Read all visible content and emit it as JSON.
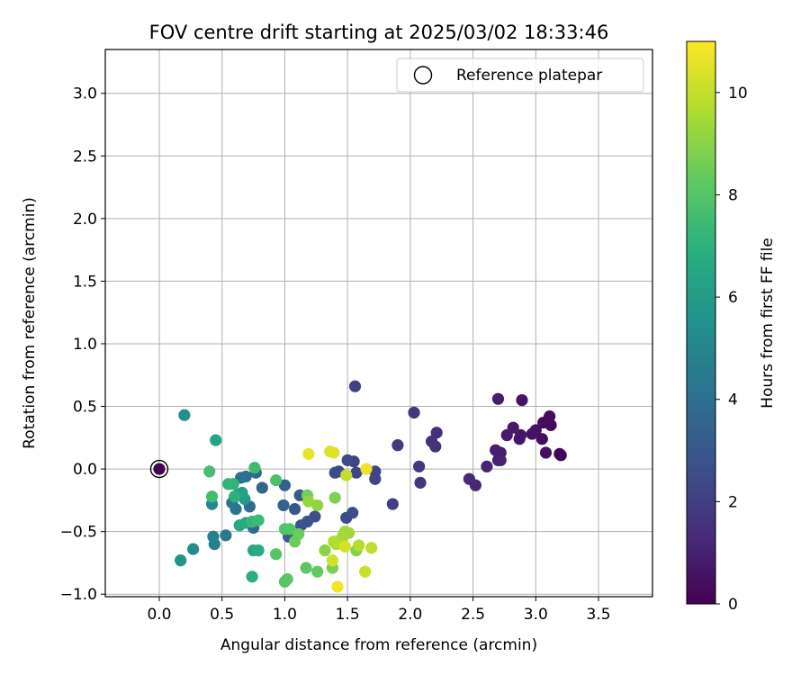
{
  "chart_data": {
    "type": "scatter",
    "title": "FOV centre drift starting at 2025/03/02 18:33:46",
    "xlabel": "Angular distance from reference (arcmin)",
    "ylabel": "Rotation from reference (arcmin)",
    "xlim": [
      -0.43,
      3.93
    ],
    "ylim": [
      -1.02,
      3.35
    ],
    "xticks": [
      "0.0",
      "0.5",
      "1.0",
      "1.5",
      "2.0",
      "2.5",
      "3.0",
      "3.5"
    ],
    "yticks": [
      "−1.0",
      "−0.5",
      "0.0",
      "0.5",
      "1.0",
      "1.5",
      "2.0",
      "2.5",
      "3.0"
    ],
    "grid": true,
    "legend": {
      "position": "top-right",
      "label": "Reference platepar"
    },
    "colorbar": {
      "label": "Hours from first FF file",
      "colormap": "viridis",
      "range": [
        0,
        11
      ],
      "ticks": [
        "0",
        "2",
        "4",
        "6",
        "8",
        "10"
      ]
    },
    "reference_point": {
      "x": 0.0,
      "y": 0.0,
      "hours": 0.0
    },
    "points": [
      {
        "x": 3.2,
        "y": 0.11,
        "h": 0.05
      },
      {
        "x": 3.19,
        "y": 0.12,
        "h": 0.1
      },
      {
        "x": 3.12,
        "y": 0.35,
        "h": 0.2
      },
      {
        "x": 3.11,
        "y": 0.42,
        "h": 0.3
      },
      {
        "x": 3.06,
        "y": 0.37,
        "h": 0.35
      },
      {
        "x": 3.08,
        "y": 0.13,
        "h": 0.4
      },
      {
        "x": 3.05,
        "y": 0.24,
        "h": 0.45
      },
      {
        "x": 3.0,
        "y": 0.31,
        "h": 0.5
      },
      {
        "x": 2.97,
        "y": 0.28,
        "h": 0.55
      },
      {
        "x": 2.89,
        "y": 0.55,
        "h": 0.6
      },
      {
        "x": 2.88,
        "y": 0.27,
        "h": 0.65
      },
      {
        "x": 2.87,
        "y": 0.24,
        "h": 0.7
      },
      {
        "x": 2.82,
        "y": 0.33,
        "h": 0.75
      },
      {
        "x": 2.77,
        "y": 0.27,
        "h": 0.8
      },
      {
        "x": 2.72,
        "y": 0.13,
        "h": 0.85
      },
      {
        "x": 2.7,
        "y": 0.56,
        "h": 0.9
      },
      {
        "x": 2.68,
        "y": 0.15,
        "h": 0.95
      },
      {
        "x": 2.7,
        "y": 0.07,
        "h": 1.0
      },
      {
        "x": 2.72,
        "y": 0.07,
        "h": 1.05
      },
      {
        "x": 2.61,
        "y": 0.02,
        "h": 1.1
      },
      {
        "x": 2.52,
        "y": -0.13,
        "h": 1.2
      },
      {
        "x": 2.47,
        "y": -0.08,
        "h": 1.3
      },
      {
        "x": 2.21,
        "y": 0.29,
        "h": 1.5
      },
      {
        "x": 2.2,
        "y": 0.18,
        "h": 1.55
      },
      {
        "x": 2.17,
        "y": 0.22,
        "h": 1.6
      },
      {
        "x": 2.07,
        "y": 0.02,
        "h": 1.7
      },
      {
        "x": 2.08,
        "y": -0.11,
        "h": 1.75
      },
      {
        "x": 2.03,
        "y": 0.45,
        "h": 1.8
      },
      {
        "x": 1.9,
        "y": 0.19,
        "h": 1.9
      },
      {
        "x": 1.86,
        "y": -0.28,
        "h": 2.0
      },
      {
        "x": 1.56,
        "y": 0.66,
        "h": 2.1
      },
      {
        "x": 1.72,
        "y": -0.02,
        "h": 2.2
      },
      {
        "x": 1.72,
        "y": -0.08,
        "h": 2.25
      },
      {
        "x": 1.57,
        "y": -0.03,
        "h": 2.3
      },
      {
        "x": 1.55,
        "y": 0.06,
        "h": 2.35
      },
      {
        "x": 1.5,
        "y": 0.07,
        "h": 2.4
      },
      {
        "x": 1.43,
        "y": -0.02,
        "h": 2.45
      },
      {
        "x": 1.4,
        "y": -0.03,
        "h": 2.5
      },
      {
        "x": 1.49,
        "y": -0.39,
        "h": 2.6
      },
      {
        "x": 1.54,
        "y": -0.35,
        "h": 2.65
      },
      {
        "x": 1.24,
        "y": -0.38,
        "h": 2.7
      },
      {
        "x": 1.18,
        "y": -0.42,
        "h": 2.8
      },
      {
        "x": 1.13,
        "y": -0.45,
        "h": 2.9
      },
      {
        "x": 1.08,
        "y": -0.32,
        "h": 3.0
      },
      {
        "x": 1.12,
        "y": -0.21,
        "h": 3.1
      },
      {
        "x": 1.03,
        "y": -0.54,
        "h": 3.2
      },
      {
        "x": 1.0,
        "y": -0.13,
        "h": 3.4
      },
      {
        "x": 0.99,
        "y": -0.29,
        "h": 3.5
      },
      {
        "x": 0.82,
        "y": -0.15,
        "h": 3.6
      },
      {
        "x": 0.77,
        "y": -0.03,
        "h": 3.7
      },
      {
        "x": 0.75,
        "y": -0.47,
        "h": 3.8
      },
      {
        "x": 0.72,
        "y": -0.3,
        "h": 3.9
      },
      {
        "x": 0.69,
        "y": -0.06,
        "h": 4.0
      },
      {
        "x": 0.65,
        "y": -0.07,
        "h": 4.1
      },
      {
        "x": 0.61,
        "y": -0.32,
        "h": 4.2
      },
      {
        "x": 0.58,
        "y": -0.27,
        "h": 4.3
      },
      {
        "x": 0.53,
        "y": -0.53,
        "h": 4.5
      },
      {
        "x": 0.44,
        "y": -0.6,
        "h": 4.7
      },
      {
        "x": 0.43,
        "y": -0.54,
        "h": 4.8
      },
      {
        "x": 0.42,
        "y": -0.28,
        "h": 5.0
      },
      {
        "x": 0.27,
        "y": -0.64,
        "h": 5.3
      },
      {
        "x": 0.2,
        "y": 0.43,
        "h": 5.5
      },
      {
        "x": 0.17,
        "y": -0.73,
        "h": 5.7
      },
      {
        "x": 0.68,
        "y": -0.24,
        "h": 6.0
      },
      {
        "x": 0.63,
        "y": -0.2,
        "h": 6.1
      },
      {
        "x": 0.66,
        "y": -0.19,
        "h": 6.2
      },
      {
        "x": 0.45,
        "y": 0.23,
        "h": 6.4
      },
      {
        "x": 0.75,
        "y": -0.65,
        "h": 6.5
      },
      {
        "x": 0.64,
        "y": -0.45,
        "h": 6.6
      },
      {
        "x": 0.69,
        "y": -0.43,
        "h": 6.7
      },
      {
        "x": 0.79,
        "y": -0.65,
        "h": 6.8
      },
      {
        "x": 0.74,
        "y": -0.86,
        "h": 6.9
      },
      {
        "x": 0.6,
        "y": -0.22,
        "h": 7.0
      },
      {
        "x": 0.55,
        "y": -0.12,
        "h": 7.1
      },
      {
        "x": 0.59,
        "y": -0.12,
        "h": 7.2
      },
      {
        "x": 0.74,
        "y": -0.42,
        "h": 7.3
      },
      {
        "x": 0.79,
        "y": -0.41,
        "h": 7.4
      },
      {
        "x": 0.76,
        "y": 0.01,
        "h": 7.5
      },
      {
        "x": 0.42,
        "y": -0.22,
        "h": 7.6
      },
      {
        "x": 0.4,
        "y": -0.02,
        "h": 7.7
      },
      {
        "x": 0.93,
        "y": -0.09,
        "h": 7.8
      },
      {
        "x": 1.0,
        "y": -0.48,
        "h": 7.9
      },
      {
        "x": 1.04,
        "y": -0.48,
        "h": 8.0
      },
      {
        "x": 0.93,
        "y": -0.68,
        "h": 8.05
      },
      {
        "x": 1.0,
        "y": -0.9,
        "h": 8.1
      },
      {
        "x": 1.02,
        "y": -0.88,
        "h": 8.15
      },
      {
        "x": 1.17,
        "y": -0.79,
        "h": 8.2
      },
      {
        "x": 1.26,
        "y": -0.82,
        "h": 8.3
      },
      {
        "x": 1.11,
        "y": -0.52,
        "h": 8.4
      },
      {
        "x": 1.08,
        "y": -0.58,
        "h": 8.5
      },
      {
        "x": 1.18,
        "y": -0.21,
        "h": 8.6
      },
      {
        "x": 1.38,
        "y": -0.79,
        "h": 8.7
      },
      {
        "x": 1.4,
        "y": -0.23,
        "h": 8.8
      },
      {
        "x": 1.57,
        "y": -0.65,
        "h": 8.9
      },
      {
        "x": 1.32,
        "y": -0.65,
        "h": 9.0
      },
      {
        "x": 1.26,
        "y": -0.29,
        "h": 9.1
      },
      {
        "x": 1.19,
        "y": -0.26,
        "h": 9.2
      },
      {
        "x": 1.48,
        "y": -0.5,
        "h": 9.3
      },
      {
        "x": 1.51,
        "y": -0.51,
        "h": 9.4
      },
      {
        "x": 1.46,
        "y": -0.54,
        "h": 9.5
      },
      {
        "x": 1.41,
        "y": -0.6,
        "h": 9.6
      },
      {
        "x": 1.39,
        "y": -0.58,
        "h": 9.7
      },
      {
        "x": 1.59,
        "y": -0.61,
        "h": 9.8
      },
      {
        "x": 1.69,
        "y": -0.63,
        "h": 9.9
      },
      {
        "x": 1.49,
        "y": -0.05,
        "h": 10.0
      },
      {
        "x": 1.64,
        "y": -0.82,
        "h": 10.1
      },
      {
        "x": 1.38,
        "y": -0.73,
        "h": 10.2
      },
      {
        "x": 1.48,
        "y": -0.62,
        "h": 10.3
      },
      {
        "x": 1.36,
        "y": 0.14,
        "h": 10.4
      },
      {
        "x": 1.39,
        "y": 0.13,
        "h": 10.5
      },
      {
        "x": 1.19,
        "y": 0.12,
        "h": 10.6
      },
      {
        "x": 1.65,
        "y": 0.0,
        "h": 10.7
      },
      {
        "x": 1.42,
        "y": -0.94,
        "h": 10.8
      }
    ]
  }
}
